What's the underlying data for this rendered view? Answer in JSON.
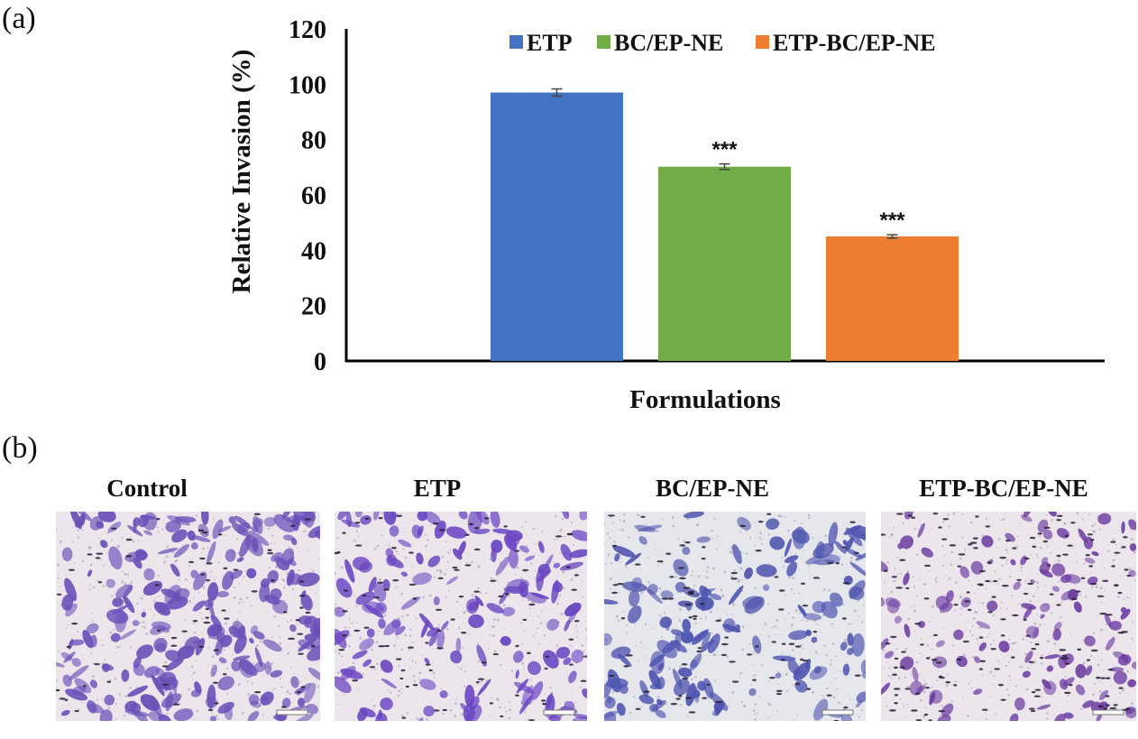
{
  "panels": {
    "a": "(a)",
    "b": "(b)"
  },
  "chart_data": {
    "type": "bar",
    "title": "",
    "xlabel": "Formulations",
    "ylabel": "Relative Invasion (%)",
    "ylim": [
      0,
      120
    ],
    "yticks": [
      0,
      20,
      40,
      60,
      80,
      100,
      120
    ],
    "legend_position": "top",
    "categories": [
      "ETP",
      "BC/EP-NE",
      "ETP-BC/EP-NE"
    ],
    "series": [
      {
        "name": "ETP",
        "color": "#4472C4",
        "value": 97,
        "error": 1.3,
        "significance": ""
      },
      {
        "name": "BC/EP-NE",
        "color": "#70AD47",
        "value": 70.2,
        "error": 1.0,
        "significance": "***"
      },
      {
        "name": "ETP-BC/EP-NE",
        "color": "#ED7D31",
        "value": 45,
        "error": 0.6,
        "significance": "***"
      }
    ]
  },
  "images": [
    {
      "title": "Control",
      "stain": "#6b4fb8",
      "density": "high"
    },
    {
      "title": "ETP",
      "stain": "#6a45c2",
      "density": "medium"
    },
    {
      "title": "BC/EP-NE",
      "stain": "#4f55b0",
      "density": "medium"
    },
    {
      "title": "ETP-BC/EP-NE",
      "stain": "#6e3fa3",
      "density": "low"
    }
  ]
}
